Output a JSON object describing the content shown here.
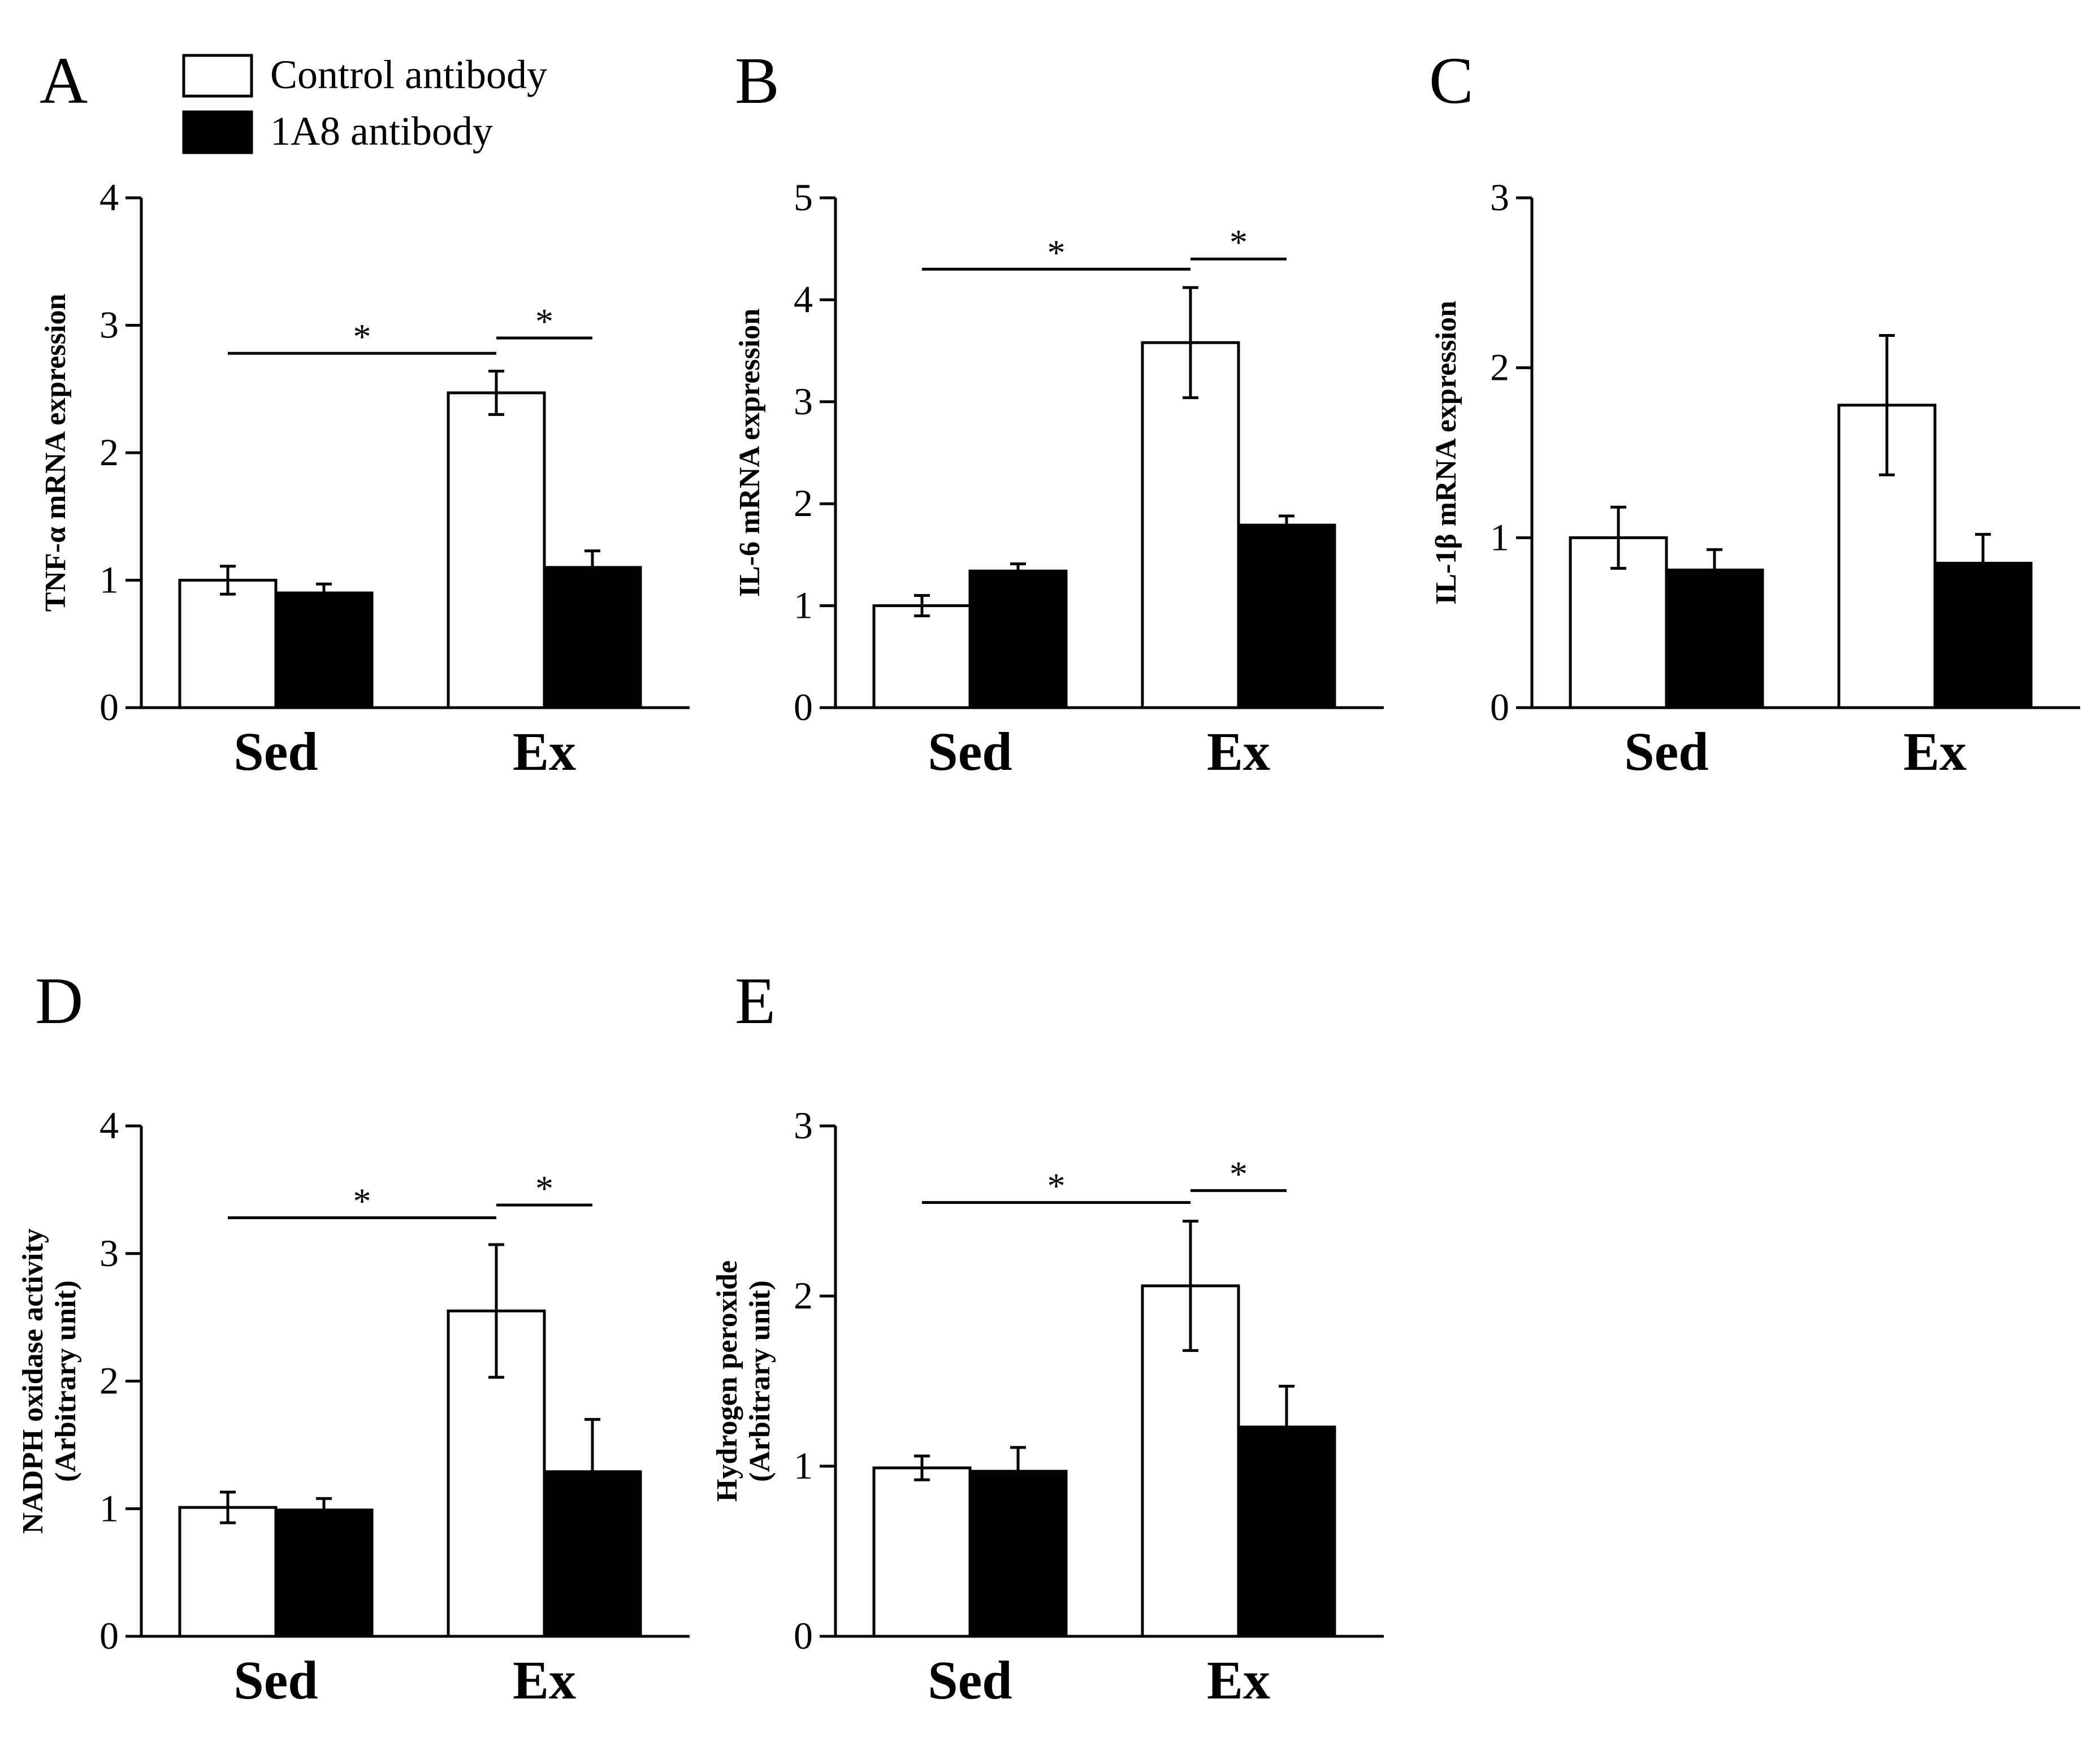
{
  "legend": [
    {
      "label": "Control antibody",
      "fill": "#ffffff"
    },
    {
      "label": "1A8 antibody",
      "fill": "#000000"
    }
  ],
  "chart_data": [
    {
      "panel": "A",
      "type": "bar",
      "ylabel": [
        "TNF-α mRNA expression"
      ],
      "ylim": [
        0,
        4
      ],
      "yticks": [
        0,
        1,
        2,
        3,
        4
      ],
      "categories": [
        "Sed",
        "Ex"
      ],
      "series": [
        {
          "name": "Control antibody",
          "values": [
            1.0,
            2.47
          ],
          "errors": [
            0.11,
            0.17
          ]
        },
        {
          "name": "1A8 antibody",
          "values": [
            0.9,
            1.1
          ],
          "errors": [
            0.07,
            0.13
          ]
        }
      ],
      "significance": [
        {
          "from": [
            0,
            0
          ],
          "to": [
            1,
            0
          ],
          "height": 2.78,
          "label": "*"
        },
        {
          "from": [
            1,
            0
          ],
          "to": [
            1,
            1
          ],
          "height": 2.9,
          "label": "*"
        }
      ]
    },
    {
      "panel": "B",
      "type": "bar",
      "ylabel": [
        "IL-6 mRNA expression"
      ],
      "ylim": [
        0,
        5
      ],
      "yticks": [
        0,
        1,
        2,
        3,
        4,
        5
      ],
      "categories": [
        "Sed",
        "Ex"
      ],
      "series": [
        {
          "name": "Control antibody",
          "values": [
            1.0,
            3.58
          ],
          "errors": [
            0.1,
            0.54
          ]
        },
        {
          "name": "1A8 antibody",
          "values": [
            1.34,
            1.79
          ],
          "errors": [
            0.07,
            0.09
          ]
        }
      ],
      "significance": [
        {
          "from": [
            0,
            0
          ],
          "to": [
            1,
            0
          ],
          "height": 4.3,
          "label": "*"
        },
        {
          "from": [
            1,
            0
          ],
          "to": [
            1,
            1
          ],
          "height": 4.4,
          "label": "*"
        }
      ]
    },
    {
      "panel": "C",
      "type": "bar",
      "ylabel": [
        "IL-1β mRNA expression"
      ],
      "ylim": [
        0,
        3
      ],
      "yticks": [
        0,
        1,
        2,
        3
      ],
      "categories": [
        "Sed",
        "Ex"
      ],
      "series": [
        {
          "name": "Control antibody",
          "values": [
            1.0,
            1.78
          ],
          "errors": [
            0.18,
            0.41
          ]
        },
        {
          "name": "1A8 antibody",
          "values": [
            0.81,
            0.85
          ],
          "errors": [
            0.12,
            0.17
          ]
        }
      ],
      "significance": []
    },
    {
      "panel": "D",
      "type": "bar",
      "ylabel": [
        "NADPH oxidase activity",
        "(Arbitrary unit)"
      ],
      "ylim": [
        0,
        4
      ],
      "yticks": [
        0,
        1,
        2,
        3,
        4
      ],
      "categories": [
        "Sed",
        "Ex"
      ],
      "series": [
        {
          "name": "Control antibody",
          "values": [
            1.01,
            2.55
          ],
          "errors": [
            0.12,
            0.52
          ]
        },
        {
          "name": "1A8 antibody",
          "values": [
            0.99,
            1.29
          ],
          "errors": [
            0.09,
            0.41
          ]
        }
      ],
      "significance": [
        {
          "from": [
            0,
            0
          ],
          "to": [
            1,
            0
          ],
          "height": 3.28,
          "label": "*"
        },
        {
          "from": [
            1,
            0
          ],
          "to": [
            1,
            1
          ],
          "height": 3.38,
          "label": "*"
        }
      ]
    },
    {
      "panel": "E",
      "type": "bar",
      "ylabel": [
        "Hydrogen peroxide",
        "(Arbitrary unit)"
      ],
      "ylim": [
        0,
        3
      ],
      "yticks": [
        0,
        1,
        2,
        3
      ],
      "categories": [
        "Sed",
        "Ex"
      ],
      "series": [
        {
          "name": "Control antibody",
          "values": [
            0.99,
            2.06
          ],
          "errors": [
            0.07,
            0.38
          ]
        },
        {
          "name": "1A8 antibody",
          "values": [
            0.97,
            1.23
          ],
          "errors": [
            0.14,
            0.24
          ]
        }
      ],
      "significance": [
        {
          "from": [
            0,
            0
          ],
          "to": [
            1,
            0
          ],
          "height": 2.55,
          "label": "*"
        },
        {
          "from": [
            1,
            0
          ],
          "to": [
            1,
            1
          ],
          "height": 2.62,
          "label": "*"
        }
      ]
    }
  ]
}
